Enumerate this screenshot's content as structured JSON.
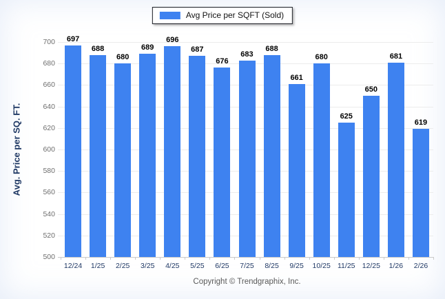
{
  "legend": {
    "label": "Avg Price per SQFT (Sold)"
  },
  "footer": {
    "copyright": "Copyright © Trendgraphix, Inc."
  },
  "colors": {
    "bar": "#3E82F0",
    "gridline": "#ececec",
    "baseline": "#c9c9c9",
    "y_tick_text": "#6e6e6e",
    "x_tick_text": "#1f3864",
    "axis_title_text": "#1f3864",
    "value_label_text": "#000000",
    "copyright_text": "#595959"
  },
  "chart_data": {
    "type": "bar",
    "title": "Avg Price per SQFT (Sold)",
    "categories": [
      "12/24",
      "1/25",
      "2/25",
      "3/25",
      "4/25",
      "5/25",
      "6/25",
      "7/25",
      "8/25",
      "9/25",
      "10/25",
      "11/25",
      "12/25",
      "1/26",
      "2/26"
    ],
    "values": [
      697,
      688,
      680,
      689,
      696,
      687,
      676,
      683,
      688,
      661,
      680,
      625,
      650,
      681,
      619
    ],
    "xlabel": "",
    "ylabel": "Avg. Price per SQ. FT.",
    "ylim": [
      500,
      700
    ],
    "ytick_step": 20,
    "grid": true,
    "legend_position": "top-center",
    "value_labels": true
  }
}
